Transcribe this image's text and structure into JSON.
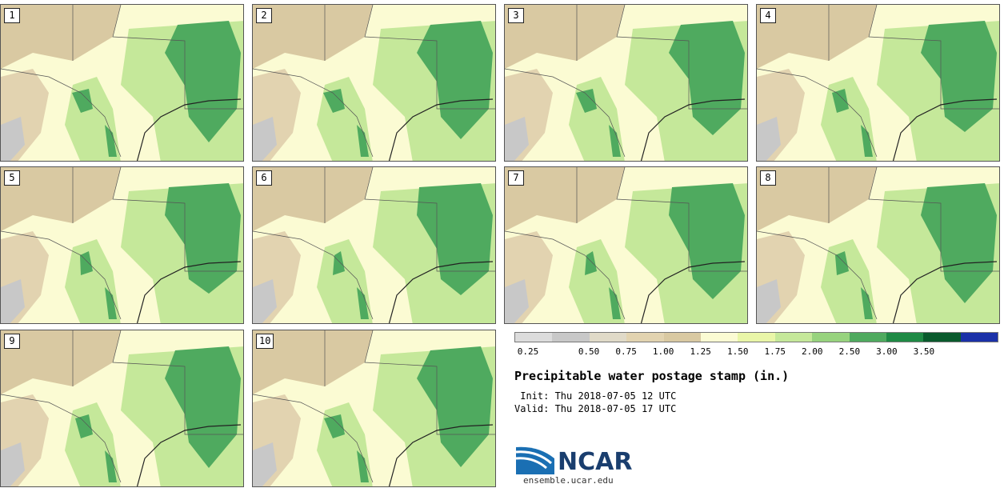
{
  "panels": [
    {
      "label": "1"
    },
    {
      "label": "2"
    },
    {
      "label": "3"
    },
    {
      "label": "4"
    },
    {
      "label": "5"
    },
    {
      "label": "6"
    },
    {
      "label": "7"
    },
    {
      "label": "8"
    },
    {
      "label": "9"
    },
    {
      "label": "10"
    }
  ],
  "legend": {
    "colors": [
      "#dcdcdc",
      "#c8c8c8",
      "#e0dac8",
      "#e2d3b0",
      "#d9c9a2",
      "#fbfbd3",
      "#e9f6a8",
      "#c5e89a",
      "#97d37e",
      "#4faa5f",
      "#1f8a45",
      "#0a5a2d",
      "#1b31a8"
    ],
    "ticks": [
      "0.25",
      "0.50",
      "0.75",
      "1.00",
      "1.25",
      "1.50",
      "1.75",
      "2.00",
      "2.50",
      "3.00",
      "3.50"
    ]
  },
  "title": "Precipitable water postage stamp (in.)",
  "init": " Init: Thu 2018-07-05 12 UTC",
  "valid": "Valid: Thu 2018-07-05 17 UTC",
  "logo": {
    "text": "NCAR",
    "url": "ensemble.ucar.edu"
  }
}
